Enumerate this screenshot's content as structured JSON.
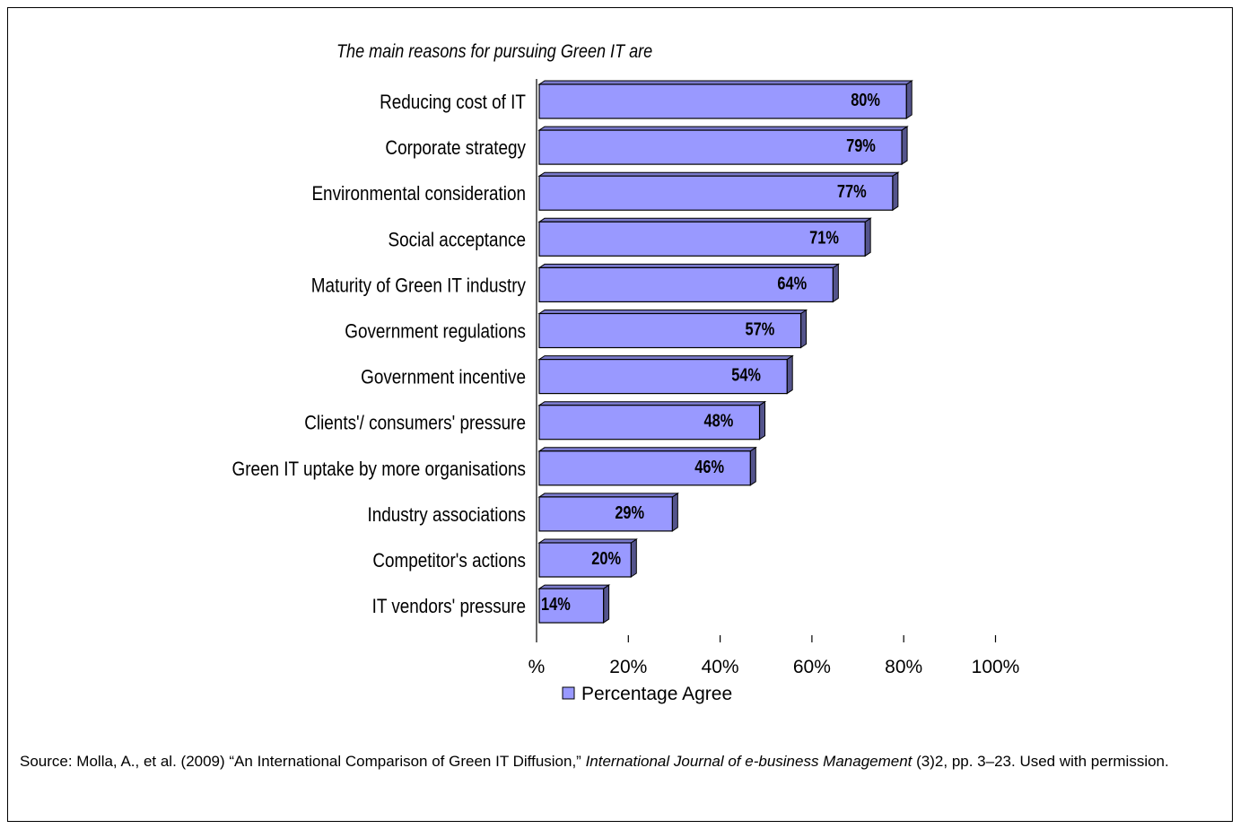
{
  "chart_data": {
    "type": "bar",
    "orientation": "horizontal",
    "title": "The main reasons for pursuing Green IT are",
    "categories": [
      "Reducing  cost of IT",
      "Corporate strategy",
      "Environmental consideration",
      "Social acceptance",
      "Maturity of  Green IT industry",
      "Government regulations",
      "Government incentive",
      "Clients'/ consumers' pressure",
      "Green IT uptake by more organisations",
      "Industry associations",
      "Competitor's actions",
      "IT vendors' pressure"
    ],
    "series": [
      {
        "name": "Percentage Agree",
        "values": [
          80,
          79,
          77,
          71,
          64,
          57,
          54,
          48,
          46,
          29,
          20,
          14
        ],
        "labels": [
          "80%",
          "79%",
          "77%",
          "71%",
          "64%",
          "57%",
          "54%",
          "48%",
          "46%",
          "29%",
          "20%",
          "14%"
        ],
        "color": "#9999ff"
      }
    ],
    "xlim": [
      0,
      100
    ],
    "x_ticks": [
      0,
      20,
      40,
      60,
      80,
      100
    ],
    "x_tick_labels": [
      "%",
      "20%",
      "40%",
      "60%",
      "80%",
      "100%"
    ],
    "grid": false,
    "legend": "bottom-center",
    "style": "3d-bars"
  },
  "caption": {
    "prefix": "Source: Molla, A., et al. (2009) “An International Comparison of Green IT Diffusion,” ",
    "journal": "International Journal of e-business Management",
    "suffix": " (3)2, pp. 3–23. Used with permission."
  }
}
